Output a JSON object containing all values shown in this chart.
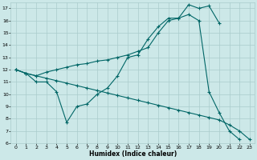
{
  "xlabel": "Humidex (Indice chaleur)",
  "bg_color": "#cce8e8",
  "grid_color": "#aacccc",
  "line_color": "#006666",
  "xlim": [
    -0.5,
    23.5
  ],
  "ylim": [
    6,
    17.5
  ],
  "yticks": [
    6,
    7,
    8,
    9,
    10,
    11,
    12,
    13,
    14,
    15,
    16,
    17
  ],
  "xticks": [
    0,
    1,
    2,
    3,
    4,
    5,
    6,
    7,
    8,
    9,
    10,
    11,
    12,
    13,
    14,
    15,
    16,
    17,
    18,
    19,
    20,
    21,
    22,
    23
  ],
  "line1_x": [
    0,
    1,
    2,
    3,
    4,
    5,
    6,
    7,
    8,
    9,
    10,
    11,
    12,
    13,
    14,
    15,
    16,
    17,
    18,
    19,
    20
  ],
  "line1_y": [
    12,
    11.7,
    11.0,
    11.0,
    10.2,
    7.7,
    9.0,
    9.2,
    10.0,
    10.5,
    11.5,
    13.0,
    13.2,
    14.5,
    15.5,
    16.2,
    16.2,
    17.3,
    17.0,
    17.2,
    15.8
  ],
  "line2_x": [
    0,
    1,
    2,
    3,
    4,
    5,
    6,
    7,
    8,
    9,
    10,
    11,
    12,
    13,
    14,
    15,
    16,
    17,
    18,
    19,
    20,
    21,
    22,
    23
  ],
  "line2_y": [
    12,
    11.7,
    11.5,
    11.3,
    11.1,
    10.9,
    10.7,
    10.5,
    10.3,
    10.1,
    9.9,
    9.7,
    9.5,
    9.3,
    9.1,
    8.9,
    8.7,
    8.5,
    8.3,
    8.1,
    7.9,
    7.5,
    7.0,
    6.3
  ],
  "line3_x": [
    0,
    1,
    2,
    3,
    4,
    5,
    6,
    7,
    8,
    9,
    10,
    11,
    12,
    13,
    14,
    15,
    16,
    17,
    18,
    19,
    20,
    21,
    22
  ],
  "line3_y": [
    12,
    11.7,
    11.5,
    11.8,
    12.0,
    12.2,
    12.4,
    12.5,
    12.7,
    12.8,
    13.0,
    13.2,
    13.5,
    13.8,
    15.0,
    16.0,
    16.2,
    16.5,
    16.0,
    10.2,
    8.5,
    7.0,
    6.3
  ]
}
